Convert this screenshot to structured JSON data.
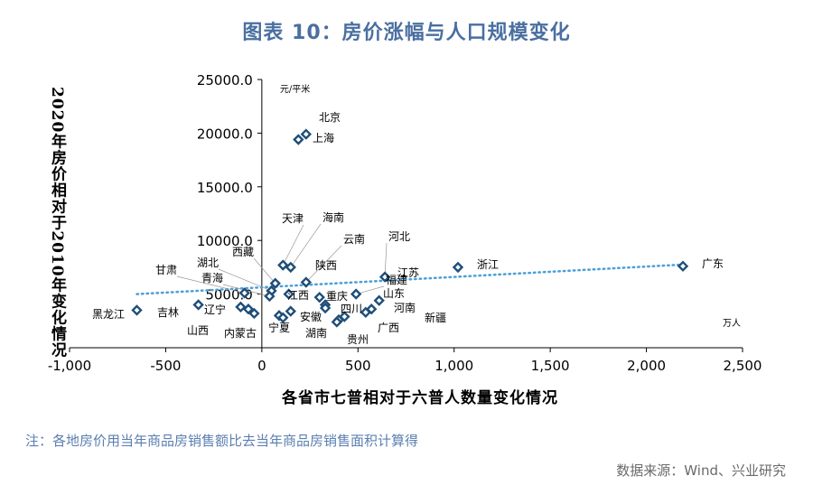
{
  "title": "图表 10：房价涨幅与人口规模变化",
  "note": "注：各地房价用当年商品房销售额比去当年商品房销售面积计算得",
  "source": "数据来源：Wind、兴业研究",
  "chart_data": {
    "type": "scatter",
    "xlabel": "各省市七普相对于六普人数量变化情况",
    "ylabel": "2020年房价相对于2010年变化情况",
    "x_unit": "万人",
    "y_unit": "元/平米",
    "xlim": [
      -1000,
      2500
    ],
    "ylim": [
      0,
      25000
    ],
    "x_ticks": [
      -1000,
      -500,
      0,
      500,
      1000,
      1500,
      2000,
      2500
    ],
    "x_tick_labels": [
      "-1,000",
      "-500",
      "0",
      "500",
      "1,000",
      "1,500",
      "2,000",
      "2,500"
    ],
    "y_ticks": [
      5000,
      10000,
      15000,
      20000,
      25000
    ],
    "y_tick_labels": [
      "5000.0",
      "10000.0",
      "15000.0",
      "20000.0",
      "25000.0"
    ],
    "marker_color": "#1f4e79",
    "trendline_color": "#4a9fd8",
    "trendline": {
      "x": [
        -650,
        2190
      ],
      "y": [
        5000,
        7750
      ]
    },
    "points": [
      {
        "name": "北京",
        "x": 230,
        "y": 19900
      },
      {
        "name": "上海",
        "x": 190,
        "y": 19400
      },
      {
        "name": "天津",
        "x": 110,
        "y": 7700
      },
      {
        "name": "海南",
        "x": 150,
        "y": 7500
      },
      {
        "name": "西藏",
        "x": 70,
        "y": 6000
      },
      {
        "name": "云南",
        "x": 230,
        "y": 6100
      },
      {
        "name": "河北",
        "x": 640,
        "y": 6600
      },
      {
        "name": "福建",
        "x": 490,
        "y": 5000
      },
      {
        "name": "浙江",
        "x": 1020,
        "y": 7500
      },
      {
        "name": "广东",
        "x": 2190,
        "y": 7600
      },
      {
        "name": "江苏",
        "x": 610,
        "y": 4400
      },
      {
        "name": "陕西",
        "x": 300,
        "y": 4700
      },
      {
        "name": "重庆",
        "x": 330,
        "y": 4000
      },
      {
        "name": "江西",
        "x": 140,
        "y": 5000
      },
      {
        "name": "湖北",
        "x": 50,
        "y": 5300
      },
      {
        "name": "青海",
        "x": 40,
        "y": 4800
      },
      {
        "name": "甘肃",
        "x": -90,
        "y": 5100
      },
      {
        "name": "辽宁",
        "x": -110,
        "y": 3800
      },
      {
        "name": "吉林",
        "x": -330,
        "y": 4000
      },
      {
        "name": "黑龙江",
        "x": -650,
        "y": 3500
      },
      {
        "name": "山西",
        "x": -70,
        "y": 3600
      },
      {
        "name": "内蒙古",
        "x": -40,
        "y": 3200
      },
      {
        "name": "宁夏",
        "x": 90,
        "y": 3000
      },
      {
        "name": "安徽",
        "x": 150,
        "y": 3400
      },
      {
        "name": "湖南",
        "x": 110,
        "y": 2800
      },
      {
        "name": "四川",
        "x": 330,
        "y": 3700
      },
      {
        "name": "山东",
        "x": 570,
        "y": 3600
      },
      {
        "name": "河南",
        "x": 540,
        "y": 3300
      },
      {
        "name": "新疆",
        "x": 430,
        "y": 2900
      },
      {
        "name": "广西",
        "x": 400,
        "y": 2600
      },
      {
        "name": "贵州",
        "x": 390,
        "y": 2400
      }
    ]
  }
}
